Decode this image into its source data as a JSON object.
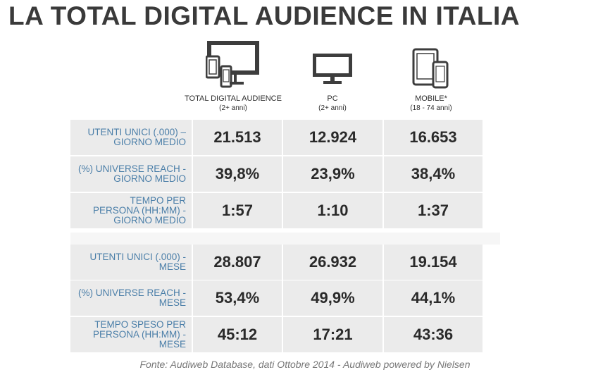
{
  "title": "LA TOTAL DIGITAL AUDIENCE IN ITALIA",
  "columns": [
    {
      "label": "TOTAL DIGITAL AUDIENCE",
      "sub": "(2+ anni)",
      "icon": "multi-device-icon"
    },
    {
      "label": "PC",
      "sub": "(2+ anni)",
      "icon": "monitor-icon"
    },
    {
      "label": "MOBILE*",
      "sub": "(18 - 74 anni)",
      "icon": "tablet-phone-icon"
    }
  ],
  "rows": [
    {
      "label": [
        "UTENTI UNICI  (.000) –",
        "GIORNO MEDIO"
      ],
      "values": [
        "21.513",
        "12.924",
        "16.653"
      ]
    },
    {
      "label": [
        "(%) UNIVERSE REACH -",
        "GIORNO MEDIO"
      ],
      "values": [
        "39,8%",
        "23,9%",
        "38,4%"
      ]
    },
    {
      "label": [
        "TEMPO PER",
        "PERSONA (HH:MM) -",
        "GIORNO MEDIO"
      ],
      "values": [
        "1:57",
        "1:10",
        "1:37"
      ]
    },
    {
      "label": [
        "UTENTI UNICI  (.000) -",
        "MESE"
      ],
      "values": [
        "28.807",
        "26.932",
        "19.154"
      ]
    },
    {
      "label": [
        "(%) UNIVERSE REACH -",
        "MESE"
      ],
      "values": [
        "53,4%",
        "49,9%",
        "44,1%"
      ]
    },
    {
      "label": [
        "TEMPO SPESO PER",
        "PERSONA (HH:MM) -",
        "MESE"
      ],
      "values": [
        "45:12",
        "17:21",
        "43:36"
      ]
    }
  ],
  "footer": "Fonte: Audiweb Database, dati Ottobre 2014 - Audiweb powered by Nielsen",
  "chart_data": {
    "type": "table",
    "title": "LA TOTAL DIGITAL AUDIENCE IN ITALIA",
    "columns": [
      "TOTAL DIGITAL AUDIENCE (2+ anni)",
      "PC (2+ anni)",
      "MOBILE* (18 - 74 anni)"
    ],
    "rows": [
      {
        "metric": "UTENTI UNICI (.000) – GIORNO MEDIO",
        "values": [
          21513,
          12924,
          16653
        ]
      },
      {
        "metric": "(%) UNIVERSE REACH - GIORNO MEDIO",
        "values": [
          39.8,
          23.9,
          38.4
        ]
      },
      {
        "metric": "TEMPO PER PERSONA (HH:MM) - GIORNO MEDIO",
        "values": [
          "1:57",
          "1:10",
          "1:37"
        ]
      },
      {
        "metric": "UTENTI UNICI (.000) - MESE",
        "values": [
          28807,
          26932,
          19154
        ]
      },
      {
        "metric": "(%) UNIVERSE REACH - MESE",
        "values": [
          53.4,
          49.9,
          44.1
        ]
      },
      {
        "metric": "TEMPO SPESO PER PERSONA (HH:MM) - MESE",
        "values": [
          "45:12",
          "17:21",
          "43:36"
        ]
      }
    ]
  }
}
